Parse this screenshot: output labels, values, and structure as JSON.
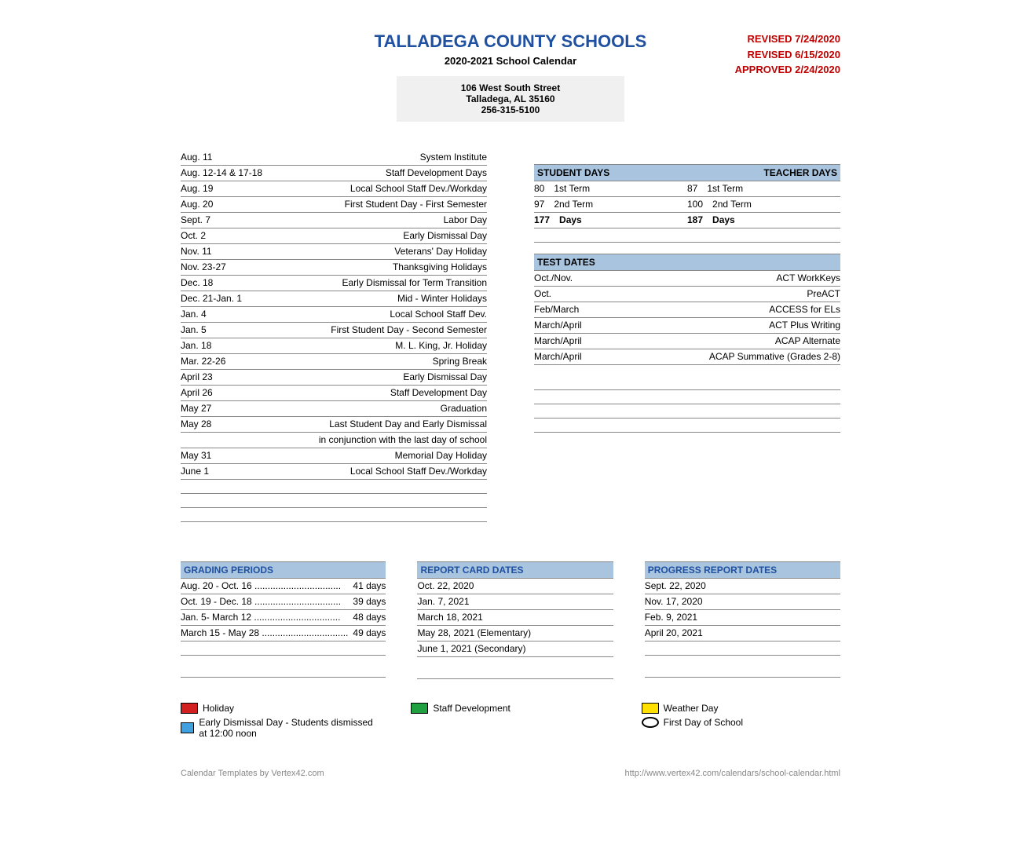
{
  "header": {
    "title": "TALLADEGA COUNTY SCHOOLS",
    "subtitle": "2020-2021 School Calendar",
    "title_color": "#2050a0",
    "revisions": [
      "REVISED 7/24/2020",
      "REVISED  6/15/2020",
      "APPROVED 2/24/2020"
    ],
    "revision_color": "#c00000",
    "address1": "106 West South Street",
    "address2": "Talladega, AL  35160",
    "phone": "256-315-5100",
    "address_bg": "#f0f0f0"
  },
  "events": [
    {
      "date": "Aug. 11",
      "label": "System Institute"
    },
    {
      "date": "Aug. 12-14 & 17-18",
      "label": "Staff Development Days"
    },
    {
      "date": "Aug. 19",
      "label": "Local School Staff Dev./Workday"
    },
    {
      "date": "Aug. 20",
      "label": "First Student Day - First Semester"
    },
    {
      "date": "Sept. 7",
      "label": "Labor Day"
    },
    {
      "date": "Oct. 2",
      "label": "Early Dismissal Day"
    },
    {
      "date": "Nov. 11",
      "label": "Veterans' Day Holiday"
    },
    {
      "date": "Nov. 23-27",
      "label": "Thanksgiving Holidays"
    },
    {
      "date": "Dec. 18",
      "label": "Early Dismissal for Term Transition"
    },
    {
      "date": "Dec. 21-Jan. 1",
      "label": "Mid - Winter Holidays"
    },
    {
      "date": "Jan. 4",
      "label": "Local School Staff Dev."
    },
    {
      "date": "Jan. 5",
      "label": "First Student Day - Second Semester"
    },
    {
      "date": "Jan. 18",
      "label": "M. L. King, Jr. Holiday"
    },
    {
      "date": "Mar. 22-26",
      "label": "Spring Break"
    },
    {
      "date": "April 23",
      "label": "Early Dismissal Day"
    },
    {
      "date": "April 26",
      "label": "Staff Development Day"
    },
    {
      "date": "May 27",
      "label": "Graduation"
    },
    {
      "date": "May 28",
      "label": "Last Student Day and Early Dismissal"
    }
  ],
  "event_note": "in conjunction with the last day of school",
  "events_tail": [
    {
      "date": "May 31",
      "label": "Memorial Day Holiday"
    },
    {
      "date": "June 1",
      "label": "Local School Staff Dev./Workday"
    }
  ],
  "days_header": {
    "left": "STUDENT DAYS",
    "right": "TEACHER DAYS",
    "bg": "#a8c4de"
  },
  "days_rows": [
    {
      "sn": "80",
      "st": "1st Term",
      "tn": "87",
      "tt": "1st Term"
    },
    {
      "sn": "97",
      "st": "2nd Term",
      "tn": "100",
      "tt": "2nd Term"
    }
  ],
  "days_total": {
    "sn": "177",
    "st": "Days",
    "tn": "187",
    "tt": "Days"
  },
  "tests_header": "TEST DATES",
  "tests": [
    {
      "when": "Oct./Nov.",
      "what": "ACT WorkKeys"
    },
    {
      "when": "Oct.",
      "what": "PreACT"
    },
    {
      "when": "Feb/March",
      "what": "ACCESS for ELs"
    },
    {
      "when": "March/April",
      "what": "ACT Plus Writing"
    },
    {
      "when": "March/April",
      "what": "ACAP Alternate"
    },
    {
      "when": "March/April",
      "what": "ACAP Summative (Grades 2-8)"
    }
  ],
  "grading_header": "GRADING PERIODS",
  "grading": [
    {
      "range": "Aug. 20 - Oct. 16",
      "days": "41 days"
    },
    {
      "range": "Oct. 19 - Dec. 18",
      "days": "39 days"
    },
    {
      "range": "Jan. 5- March 12",
      "days": "48 days"
    },
    {
      "range": "March 15 - May 28",
      "days": "49 days"
    }
  ],
  "report_header": "REPORT CARD DATES",
  "report": [
    "Oct. 22, 2020",
    "Jan. 7, 2021",
    "March 18, 2021",
    "May 28, 2021 (Elementary)",
    "June 1, 2021 (Secondary)"
  ],
  "progress_header": "PROGRESS REPORT DATES",
  "progress": [
    "Sept. 22, 2020",
    "Nov. 17, 2020",
    "Feb. 9, 2021",
    "April 20, 2021"
  ],
  "legend": {
    "holiday": {
      "label": "Holiday",
      "color": "#d22020"
    },
    "early": {
      "label": "Early Dismissal Day - Students dismissed  at 12:00 noon",
      "color": "#40a0e0"
    },
    "staff": {
      "label": "Staff Development",
      "color": "#20a040"
    },
    "weather": {
      "label": "Weather Day",
      "color": "#ffe000"
    },
    "first": {
      "label": "First Day of School"
    }
  },
  "footer": {
    "left": "Calendar Templates by Vertex42.com",
    "right": "http://www.vertex42.com/calendars/school-calendar.html",
    "color": "#888888"
  },
  "colors": {
    "section_bg": "#a8c4de",
    "border": "#888888",
    "header_text": "#2050a0"
  }
}
